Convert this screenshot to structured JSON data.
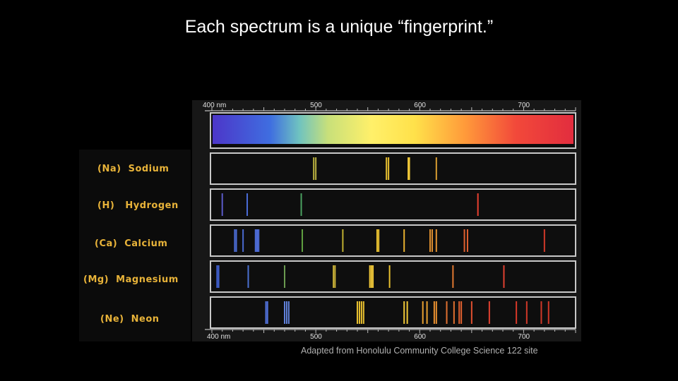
{
  "slide": {
    "title": "Each spectrum is a unique “fingerprint.”",
    "credit": "Adapted from Honolulu Community College Science 122 site"
  },
  "colors": {
    "background": "#000000",
    "label_text": "#e8b339",
    "frame": "#bdbdbd",
    "strip_bg": "#0e0e0e"
  },
  "axis": {
    "top_ticks": [
      {
        "value": 400,
        "label": "400 nm"
      },
      {
        "value": 500,
        "label": "500"
      },
      {
        "value": 600,
        "label": "600"
      },
      {
        "value": 700,
        "label": "700"
      }
    ],
    "bottom_ticks": [
      {
        "value": 400,
        "label": "400 nm"
      },
      {
        "value": 500,
        "label": "500"
      },
      {
        "value": 600,
        "label": "600"
      },
      {
        "value": 700,
        "label": "700"
      }
    ],
    "range_nm": [
      400,
      750
    ]
  },
  "elements": [
    {
      "label": "(Na)  Sodium",
      "lines_nm": [
        [
          498,
          "#b8b040"
        ],
        [
          500,
          "#b8b040"
        ],
        [
          568,
          "#e8c030"
        ],
        [
          570,
          "#e8c030"
        ],
        [
          589,
          "#f0c838"
        ],
        [
          590,
          "#f0c838"
        ],
        [
          616,
          "#d89c30"
        ]
      ]
    },
    {
      "label": "(H)   Hydrogen",
      "lines_nm": [
        [
          410,
          "#5a5ac8"
        ],
        [
          434,
          "#4a6cd8"
        ],
        [
          486,
          "#4aa060"
        ],
        [
          656,
          "#e84030"
        ]
      ]
    },
    {
      "label": "(Ca)  Calcium",
      "lines_nm": [
        [
          422,
          "#4a6ad0"
        ],
        [
          423.5,
          "#4a6ad0"
        ],
        [
          430,
          "#4a6ad0"
        ],
        [
          442,
          "#5070e0"
        ],
        [
          443.5,
          "#5070e0"
        ],
        [
          445,
          "#5070e0"
        ],
        [
          487,
          "#60a040"
        ],
        [
          526,
          "#c0b030"
        ],
        [
          559,
          "#e8c030"
        ],
        [
          560.5,
          "#e8c030"
        ],
        [
          585,
          "#e8b030"
        ],
        [
          610,
          "#e09030"
        ],
        [
          612,
          "#e09030"
        ],
        [
          616,
          "#e09030"
        ],
        [
          643,
          "#e06030"
        ],
        [
          646,
          "#e06030"
        ],
        [
          720,
          "#d03828"
        ]
      ]
    },
    {
      "label": "(Mg)  Magnesium",
      "lines_nm": [
        [
          405,
          "#4060d0"
        ],
        [
          406.5,
          "#4060d0"
        ],
        [
          435,
          "#4a70d0"
        ],
        [
          470,
          "#6a9a50"
        ],
        [
          517,
          "#c8b038"
        ],
        [
          518.5,
          "#c8b038"
        ],
        [
          552,
          "#f0c838"
        ],
        [
          553.5,
          "#f0c838"
        ],
        [
          555,
          "#f0c838"
        ],
        [
          571,
          "#e8c030"
        ],
        [
          632,
          "#e07830"
        ],
        [
          681,
          "#e04030"
        ]
      ]
    },
    {
      "label": "(Ne)  Neon",
      "lines_nm": [
        [
          452,
          "#5070d8"
        ],
        [
          453.5,
          "#5070d8"
        ],
        [
          470,
          "#6080d8"
        ],
        [
          472,
          "#6080d8"
        ],
        [
          474,
          "#6080d8"
        ],
        [
          540,
          "#e8c030"
        ],
        [
          542,
          "#e8c030"
        ],
        [
          544,
          "#e8c030"
        ],
        [
          546,
          "#e8c030"
        ],
        [
          585,
          "#f0c838"
        ],
        [
          588,
          "#f0c838"
        ],
        [
          603,
          "#e8a030"
        ],
        [
          607,
          "#e8a030"
        ],
        [
          614,
          "#e89030"
        ],
        [
          616,
          "#e89030"
        ],
        [
          626,
          "#e07030"
        ],
        [
          633,
          "#e07030"
        ],
        [
          638,
          "#e06030"
        ],
        [
          640,
          "#e06030"
        ],
        [
          650,
          "#e05030"
        ],
        [
          667,
          "#e04030"
        ],
        [
          693,
          "#d83828"
        ],
        [
          703,
          "#d03828"
        ],
        [
          717,
          "#d03828"
        ],
        [
          724,
          "#d03828"
        ]
      ]
    }
  ]
}
